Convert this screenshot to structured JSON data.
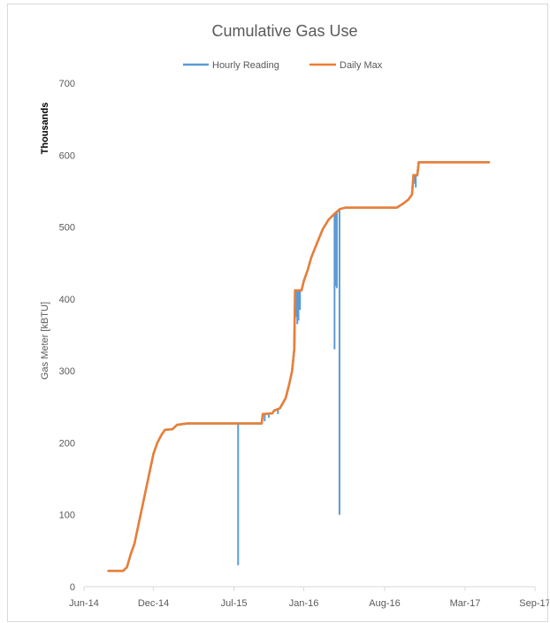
{
  "chart_data": {
    "type": "line",
    "title": "Cumulative Gas Use",
    "ylabel": "Gas Meter  [kBTU]",
    "xlabel": "",
    "y_display_units": "Thousands",
    "ylim": [
      0,
      700
    ],
    "y_ticks": [
      0,
      100,
      200,
      300,
      400,
      500,
      600,
      700
    ],
    "x_ticks": [
      "Jun-14",
      "Dec-14",
      "Jul-15",
      "Jan-16",
      "Aug-16",
      "Mar-17",
      "Sep-17"
    ],
    "x_tick_dates": [
      "2014-06-01",
      "2014-12-01",
      "2015-07-01",
      "2016-01-01",
      "2016-08-01",
      "2017-03-01",
      "2017-09-01"
    ],
    "xlim": [
      "2014-06-01",
      "2017-09-01"
    ],
    "legend_position": "top",
    "colors": {
      "Hourly Reading": "#5b9bd5",
      "Daily Max": "#ed7d31"
    },
    "series": [
      {
        "name": "Daily Max",
        "points": [
          [
            "2014-08-04",
            22
          ],
          [
            "2014-09-12",
            22
          ],
          [
            "2014-09-22",
            27
          ],
          [
            "2014-10-02",
            45
          ],
          [
            "2014-10-12",
            60
          ],
          [
            "2014-10-22",
            85
          ],
          [
            "2014-11-01",
            110
          ],
          [
            "2014-11-11",
            135
          ],
          [
            "2014-11-21",
            160
          ],
          [
            "2014-12-01",
            185
          ],
          [
            "2014-12-11",
            200
          ],
          [
            "2014-12-21",
            210
          ],
          [
            "2014-12-31",
            218
          ],
          [
            "2015-01-20",
            219
          ],
          [
            "2015-02-01",
            225
          ],
          [
            "2015-02-28",
            227
          ],
          [
            "2015-09-12",
            227
          ],
          [
            "2015-09-15",
            240
          ],
          [
            "2015-10-10",
            241
          ],
          [
            "2015-10-15",
            245
          ],
          [
            "2015-10-30",
            248
          ],
          [
            "2015-11-14",
            262
          ],
          [
            "2015-11-24",
            282
          ],
          [
            "2015-12-01",
            300
          ],
          [
            "2015-12-07",
            330
          ],
          [
            "2015-12-09",
            412
          ],
          [
            "2015-12-26",
            412
          ],
          [
            "2016-01-01",
            425
          ],
          [
            "2016-01-11",
            440
          ],
          [
            "2016-01-21",
            458
          ],
          [
            "2016-02-05",
            478
          ],
          [
            "2016-02-20",
            497
          ],
          [
            "2016-03-06",
            510
          ],
          [
            "2016-03-21",
            518
          ],
          [
            "2016-04-05",
            525
          ],
          [
            "2016-04-20",
            527
          ],
          [
            "2016-09-02",
            527
          ],
          [
            "2016-09-17",
            532
          ],
          [
            "2016-10-02",
            538
          ],
          [
            "2016-10-12",
            545
          ],
          [
            "2016-10-16",
            572
          ],
          [
            "2016-10-26",
            572
          ],
          [
            "2016-10-30",
            590
          ],
          [
            "2017-05-03",
            590
          ]
        ]
      },
      {
        "name": "Hourly Reading",
        "spikes": [
          [
            "2015-07-12",
            30
          ],
          [
            "2015-09-20",
            230
          ],
          [
            "2015-10-01",
            235
          ],
          [
            "2015-10-25",
            240
          ],
          [
            "2015-12-13",
            375
          ],
          [
            "2015-12-15",
            365
          ],
          [
            "2015-12-18",
            370
          ],
          [
            "2015-12-22",
            385
          ],
          [
            "2016-03-22",
            330
          ],
          [
            "2016-03-25",
            418
          ],
          [
            "2016-03-28",
            415
          ],
          [
            "2016-04-04",
            100
          ],
          [
            "2016-10-20",
            560
          ],
          [
            "2016-10-22",
            555
          ]
        ]
      }
    ]
  }
}
